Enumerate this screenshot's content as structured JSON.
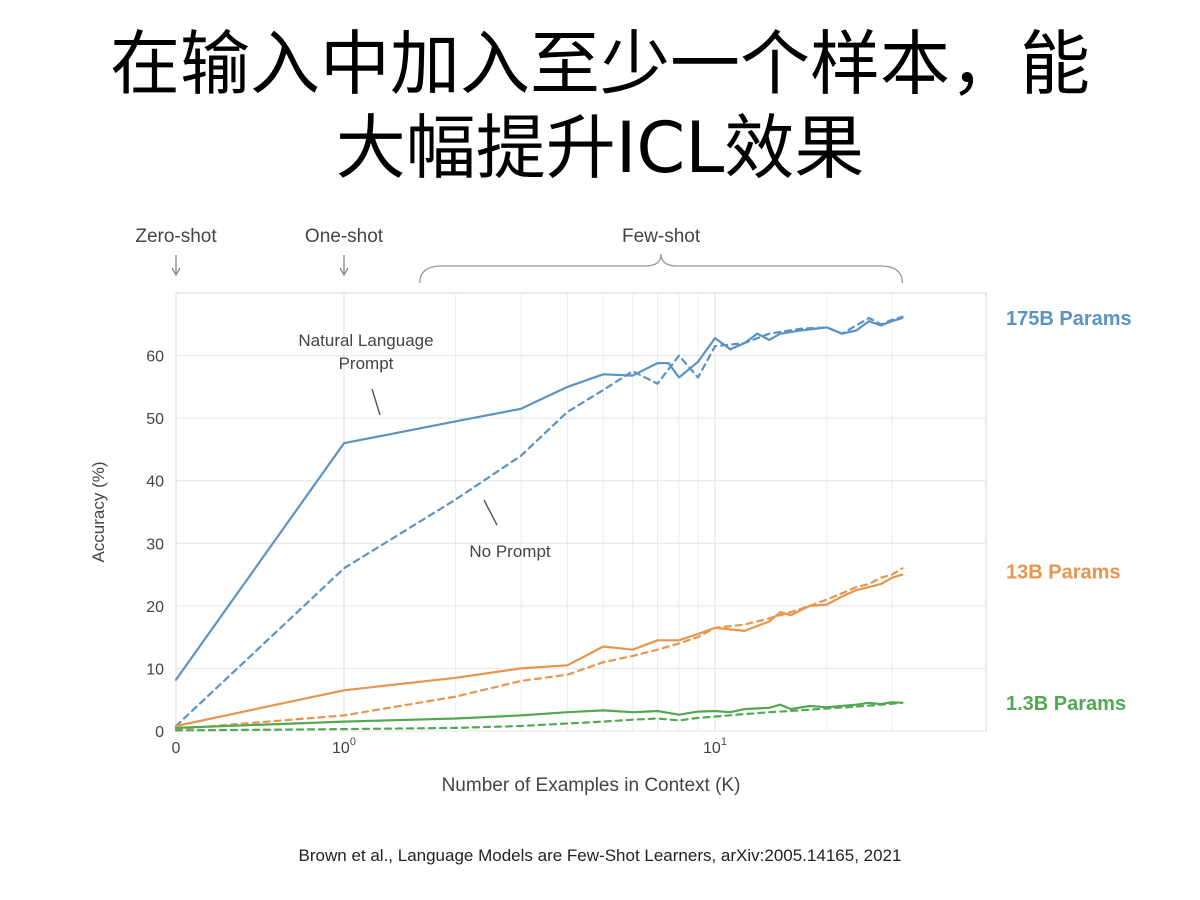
{
  "slide": {
    "title_line1": "在输入中加入至少一个样本，能",
    "title_line2": "大幅提升ICL效果",
    "citation": "Brown et al., Language Models are Few-Shot Learners, arXiv:2005.14165, 2021"
  },
  "chart_data": {
    "type": "line",
    "xlabel": "Number of Examples in Context  (K)",
    "ylabel": "Accuracy (%)",
    "x_scale": "symlog",
    "xlim": [
      0,
      32
    ],
    "ylim": [
      0,
      70
    ],
    "x_ticks": [
      {
        "value": 0,
        "base": "0",
        "exp": ""
      },
      {
        "value": 1,
        "base": "10",
        "exp": "0"
      },
      {
        "value": 10,
        "base": "10",
        "exp": "1"
      }
    ],
    "y_ticks": [
      0,
      10,
      20,
      30,
      40,
      50,
      60
    ],
    "grid": true,
    "regions": [
      {
        "label": "Zero-shot",
        "at": 0,
        "kind": "arrow"
      },
      {
        "label": "One-shot",
        "at": 1,
        "kind": "arrow"
      },
      {
        "label": "Few-shot",
        "from": 1.6,
        "to": 32,
        "kind": "brace"
      }
    ],
    "annotations": [
      {
        "text": [
          "Natural Language",
          "Prompt"
        ],
        "points_to_series": "175B Params (Natural Language Prompt)"
      },
      {
        "text": [
          "No Prompt"
        ],
        "points_to_series": "175B Params (No Prompt)"
      }
    ],
    "colors": {
      "175B": "#5b93c2",
      "13B": "#e8954e",
      "1.3B": "#53a853"
    },
    "series": [
      {
        "name": "175B Params (Natural Language Prompt)",
        "model": "175B",
        "style": "solid",
        "points": [
          [
            0,
            8.2
          ],
          [
            1,
            46
          ],
          [
            2,
            49.5
          ],
          [
            3,
            51.5
          ],
          [
            4,
            55
          ],
          [
            5,
            57
          ],
          [
            6,
            56.8
          ],
          [
            7,
            58.8
          ],
          [
            7.5,
            58.8
          ],
          [
            8,
            56.5
          ],
          [
            9,
            59
          ],
          [
            10,
            62.8
          ],
          [
            11,
            61
          ],
          [
            12,
            62
          ],
          [
            13,
            63.5
          ],
          [
            14,
            62.5
          ],
          [
            15,
            63.5
          ],
          [
            17,
            64
          ],
          [
            20,
            64.5
          ],
          [
            22,
            63.5
          ],
          [
            24,
            64
          ],
          [
            26,
            65.5
          ],
          [
            28,
            64.8
          ],
          [
            30,
            65.5
          ],
          [
            32,
            66
          ]
        ]
      },
      {
        "name": "175B Params (No Prompt)",
        "model": "175B",
        "style": "dashed",
        "points": [
          [
            0,
            0.8
          ],
          [
            1,
            26
          ],
          [
            2,
            37
          ],
          [
            3,
            44
          ],
          [
            4,
            51
          ],
          [
            5,
            54.5
          ],
          [
            6,
            57.5
          ],
          [
            7,
            55.5
          ],
          [
            8,
            60
          ],
          [
            9,
            56.5
          ],
          [
            10,
            61.5
          ],
          [
            12,
            62
          ],
          [
            14,
            63.5
          ],
          [
            17,
            64.3
          ],
          [
            20,
            64.5
          ],
          [
            22,
            63.5
          ],
          [
            26,
            66
          ],
          [
            28,
            65
          ],
          [
            30,
            65.7
          ],
          [
            32,
            66.2
          ]
        ]
      },
      {
        "name": "13B Params (Natural Language Prompt)",
        "model": "13B",
        "style": "solid",
        "points": [
          [
            0,
            0.8
          ],
          [
            1,
            6.5
          ],
          [
            2,
            8.5
          ],
          [
            3,
            10
          ],
          [
            4,
            10.5
          ],
          [
            5,
            13.5
          ],
          [
            6,
            13
          ],
          [
            7,
            14.5
          ],
          [
            8,
            14.5
          ],
          [
            9,
            15.5
          ],
          [
            10,
            16.5
          ],
          [
            12,
            16
          ],
          [
            14,
            17.5
          ],
          [
            15,
            19
          ],
          [
            16,
            18.5
          ],
          [
            18,
            20
          ],
          [
            20,
            20.2
          ],
          [
            22,
            21.5
          ],
          [
            24,
            22.5
          ],
          [
            26,
            23
          ],
          [
            28,
            23.5
          ],
          [
            30,
            24.5
          ],
          [
            32,
            25
          ]
        ]
      },
      {
        "name": "13B Params (No Prompt)",
        "model": "13B",
        "style": "dashed",
        "points": [
          [
            0,
            0.3
          ],
          [
            1,
            2.5
          ],
          [
            2,
            5.5
          ],
          [
            3,
            8
          ],
          [
            4,
            9
          ],
          [
            5,
            11
          ],
          [
            6,
            12
          ],
          [
            7,
            13
          ],
          [
            8,
            14
          ],
          [
            9,
            15
          ],
          [
            10,
            16.5
          ],
          [
            12,
            17
          ],
          [
            14,
            18
          ],
          [
            16,
            19
          ],
          [
            18,
            20
          ],
          [
            20,
            21
          ],
          [
            22,
            22
          ],
          [
            24,
            23
          ],
          [
            26,
            23.5
          ],
          [
            28,
            24.5
          ],
          [
            30,
            25
          ],
          [
            32,
            26
          ]
        ]
      },
      {
        "name": "1.3B Params (Natural Language Prompt)",
        "model": "1.3B",
        "style": "solid",
        "points": [
          [
            0,
            0.5
          ],
          [
            1,
            1.5
          ],
          [
            2,
            2
          ],
          [
            3,
            2.5
          ],
          [
            4,
            3
          ],
          [
            5,
            3.3
          ],
          [
            6,
            3
          ],
          [
            7,
            3.2
          ],
          [
            8,
            2.6
          ],
          [
            9,
            3.1
          ],
          [
            10,
            3.2
          ],
          [
            11,
            3
          ],
          [
            12,
            3.5
          ],
          [
            14,
            3.7
          ],
          [
            15,
            4.2
          ],
          [
            16,
            3.5
          ],
          [
            18,
            4
          ],
          [
            20,
            3.8
          ],
          [
            24,
            4.2
          ],
          [
            26,
            4.5
          ],
          [
            28,
            4.3
          ],
          [
            30,
            4.6
          ],
          [
            32,
            4.5
          ]
        ]
      },
      {
        "name": "1.3B Params (No Prompt)",
        "model": "1.3B",
        "style": "dashed",
        "points": [
          [
            0,
            0.1
          ],
          [
            1,
            0.3
          ],
          [
            2,
            0.5
          ],
          [
            3,
            0.8
          ],
          [
            4,
            1.2
          ],
          [
            5,
            1.5
          ],
          [
            6,
            1.8
          ],
          [
            7,
            2
          ],
          [
            8,
            1.7
          ],
          [
            9,
            2.1
          ],
          [
            10,
            2.3
          ],
          [
            12,
            2.7
          ],
          [
            14,
            3
          ],
          [
            16,
            3.2
          ],
          [
            18,
            3.4
          ],
          [
            20,
            3.6
          ],
          [
            24,
            3.9
          ],
          [
            28,
            4.2
          ],
          [
            32,
            4.5
          ]
        ]
      }
    ],
    "series_labels": [
      {
        "text": "175B Params",
        "model": "175B",
        "y": 66
      },
      {
        "text": "13B Params",
        "model": "13B",
        "y": 25.5
      },
      {
        "text": "1.3B Params",
        "model": "1.3B",
        "y": 4.5
      }
    ]
  }
}
